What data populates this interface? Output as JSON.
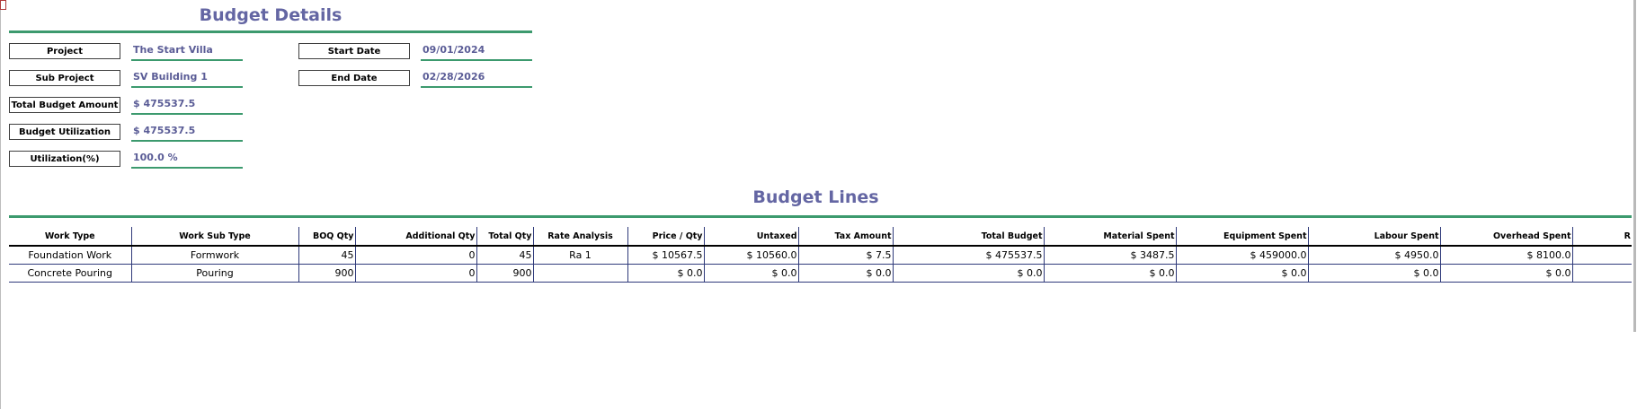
{
  "budget_details": {
    "title": "Budget Details",
    "fields": {
      "project": {
        "label": "Project",
        "value": "The Start Villa"
      },
      "sub_project": {
        "label": "Sub Project",
        "value": "SV Building 1"
      },
      "total_budget_amount": {
        "label": "Total Budget Amount",
        "value": "$ 475537.5"
      },
      "budget_utilization": {
        "label": "Budget Utilization",
        "value": "$ 475537.5"
      },
      "utilization_pct": {
        "label": "Utilization(%)",
        "value": "100.0 %"
      },
      "start_date": {
        "label": "Start Date",
        "value": "09/01/2024"
      },
      "end_date": {
        "label": "End Date",
        "value": "02/28/2026"
      }
    }
  },
  "budget_lines": {
    "title": "Budget Lines",
    "columns": [
      "Work Type",
      "Work Sub Type",
      "BOQ Qty",
      "Additional Qty",
      "Total Qty",
      "Rate Analysis",
      "Price / Qty",
      "Untaxed",
      "Tax Amount",
      "Total Budget",
      "Material Spent",
      "Equipment Spent",
      "Labour Spent",
      "Overhead Spent",
      "R"
    ],
    "rows": [
      [
        "Foundation Work",
        "Formwork",
        "45",
        "0",
        "45",
        "Ra 1",
        "$ 10567.5",
        "$ 10560.0",
        "$ 7.5",
        "$ 475537.5",
        "$ 3487.5",
        "$ 459000.0",
        "$ 4950.0",
        "$ 8100.0",
        ""
      ],
      [
        "Concrete Pouring",
        "Pouring",
        "900",
        "0",
        "900",
        "",
        "$ 0.0",
        "$ 0.0",
        "$ 0.0",
        "$ 0.0",
        "$ 0.0",
        "$ 0.0",
        "$ 0.0",
        "$ 0.0",
        ""
      ]
    ]
  }
}
